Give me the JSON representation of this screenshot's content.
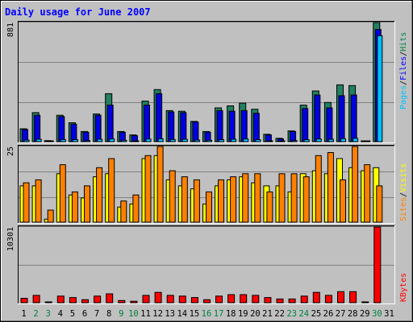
{
  "chart_data": {
    "type": "bar",
    "title": "Daily usage for June 2007",
    "categories": [
      "1",
      "2",
      "3",
      "4",
      "5",
      "6",
      "7",
      "8",
      "9",
      "10",
      "11",
      "12",
      "13",
      "14",
      "15",
      "16",
      "17",
      "18",
      "19",
      "20",
      "21",
      "22",
      "23",
      "24",
      "25",
      "26",
      "27",
      "28",
      "29",
      "30",
      "31"
    ],
    "weekend_days": [
      2,
      3,
      9,
      10,
      16,
      17,
      23,
      24,
      30
    ],
    "panels": [
      {
        "name": "hits-files-pages",
        "ymax_label": "881",
        "ymax": 881,
        "legend": [
          "Pages",
          "/",
          "Files",
          "/",
          "Hits"
        ],
        "legend_colors": [
          "#00c0ff",
          "#000000",
          "#0000ff",
          "#000000",
          "#008040"
        ],
        "series": [
          {
            "name": "Hits",
            "color": "#208060",
            "values": [
              95,
              215,
              8,
              195,
              140,
              75,
              205,
              355,
              75,
              50,
              300,
              385,
              230,
              225,
              150,
              75,
              250,
              265,
              285,
              240,
              55,
              25,
              80,
              270,
              375,
              290,
              420,
              415,
              4,
              881,
              0
            ]
          },
          {
            "name": "Files",
            "color": "#0000e0",
            "values": [
              90,
              195,
              5,
              185,
              130,
              70,
              195,
              270,
              70,
              45,
              270,
              355,
              220,
              215,
              145,
              70,
              230,
              225,
              230,
              210,
              50,
              20,
              75,
              245,
              345,
              250,
              340,
              345,
              3,
              830,
              0
            ]
          },
          {
            "name": "Pages",
            "color": "#00c0ff",
            "values": [
              12,
              18,
              2,
              16,
              15,
              8,
              18,
              20,
              10,
              5,
              20,
              22,
              16,
              18,
              12,
              10,
              15,
              18,
              20,
              15,
              6,
              4,
              8,
              15,
              20,
              18,
              22,
              25,
              2,
              784,
              0
            ]
          }
        ]
      },
      {
        "name": "visits-sites",
        "ymax_label": "25",
        "ymax": 25,
        "legend": [
          "Sites",
          "/",
          "Visits"
        ],
        "legend_colors": [
          "#ff8000",
          "#000000",
          "#ffff00"
        ],
        "series": [
          {
            "name": "Visits",
            "color": "#ffff00",
            "values": [
              12,
              12,
              1,
              16,
              9,
              8,
              15,
              16,
              5,
              6,
              21,
              22,
              14,
              12,
              11,
              6,
              12,
              14,
              15,
              13,
              12,
              12,
              10,
              16,
              17,
              16,
              21,
              18,
              17,
              18,
              0
            ]
          },
          {
            "name": "Sites",
            "color": "#ff8000",
            "values": [
              13,
              14,
              4,
              19,
              10,
              12,
              18,
              21,
              7,
              9,
              22,
              25,
              17,
              15,
              14,
              10,
              14,
              15,
              16,
              16,
              10,
              16,
              16,
              15,
              22,
              23,
              14,
              25,
              19,
              12,
              0
            ]
          }
        ]
      },
      {
        "name": "kbytes",
        "ymax_label": "10301",
        "ymax": 10301,
        "legend": [
          "KBytes"
        ],
        "legend_colors": [
          "#ff0000"
        ],
        "series": [
          {
            "name": "KBytes",
            "color": "#ff0000",
            "values": [
              600,
              1000,
              100,
              900,
              700,
              400,
              900,
              1200,
              300,
              200,
              1000,
              1400,
              1000,
              900,
              700,
              400,
              900,
              1100,
              1100,
              1000,
              700,
              500,
              500,
              900,
              1400,
              1000,
              1500,
              1500,
              100,
              10301,
              0
            ]
          }
        ]
      }
    ]
  }
}
